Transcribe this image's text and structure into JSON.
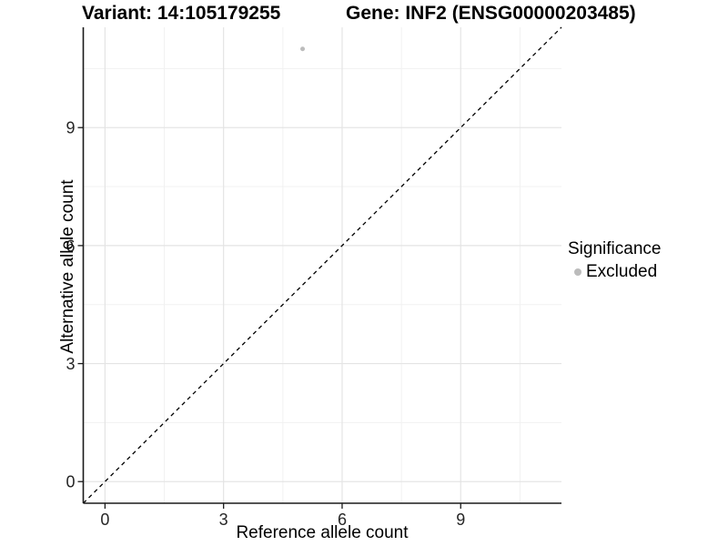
{
  "titles": {
    "variant": "Variant: 14:105179255",
    "gene": "Gene: INF2 (ENSG00000203485)"
  },
  "axes": {
    "x_label": "Reference allele count",
    "y_label": "Alternative allele count"
  },
  "legend": {
    "title": "Significance",
    "items": [
      {
        "label": "Excluded",
        "color": "#bcbcbc"
      }
    ]
  },
  "colors": {
    "grid_major": "#e4e4e4",
    "grid_minor": "#f1f1f1",
    "axis_line": "#1a1a1a",
    "tick_mark": "#1a1a1a",
    "reference_line": "#000000",
    "point": "#bcbcbc"
  },
  "chart_data": {
    "type": "scatter",
    "title": "Variant: 14:105179255   |   Gene: INF2 (ENSG00000203485)",
    "xlabel": "Reference allele count",
    "ylabel": "Alternative allele count",
    "xlim": [
      -0.55,
      11.55
    ],
    "ylim": [
      -0.55,
      11.55
    ],
    "x_ticks": [
      0,
      3,
      6,
      9
    ],
    "y_ticks": [
      0,
      3,
      6,
      9
    ],
    "x_minor_ticks": [
      1.5,
      4.5,
      7.5,
      10.5
    ],
    "y_minor_ticks": [
      1.5,
      4.5,
      7.5,
      10.5
    ],
    "grid": true,
    "legend_position": "right",
    "series": [
      {
        "name": "Excluded",
        "color": "#bcbcbc",
        "points": [
          {
            "x": 5,
            "y": 11
          }
        ]
      }
    ],
    "reference_line": {
      "slope": 1,
      "intercept": 0,
      "style": "dashed"
    }
  }
}
